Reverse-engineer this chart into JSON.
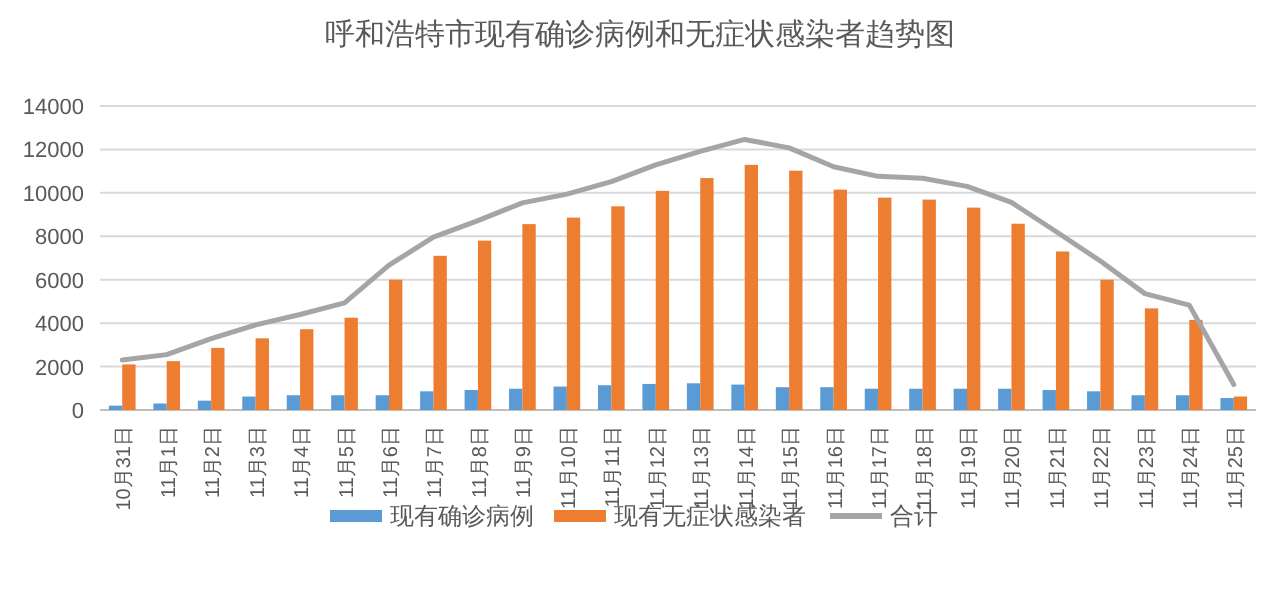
{
  "chart_data": {
    "type": "bar",
    "title": "呼和浩特市现有确诊病例和无症状感染者趋势图",
    "categories": [
      "10月31日",
      "11月1日",
      "11月2日",
      "11月3日",
      "11月4日",
      "11月5日",
      "11月6日",
      "11月7日",
      "11月8日",
      "11月9日",
      "11月10日",
      "11月11日",
      "11月12日",
      "11月13日",
      "11月14日",
      "11月15日",
      "11月16日",
      "11月17日",
      "11月18日",
      "11月19日",
      "11月20日",
      "11月21日",
      "11月22日",
      "11月23日",
      "11月24日",
      "11月25日"
    ],
    "series": [
      {
        "name": "现有确诊病例",
        "color": "#5b9bd5",
        "values": [
          200,
          300,
          430,
          620,
          680,
          680,
          680,
          860,
          920,
          980,
          1080,
          1140,
          1200,
          1230,
          1170,
          1050,
          1050,
          980,
          980,
          980,
          980,
          920,
          860,
          680,
          680,
          550
        ]
      },
      {
        "name": "现有无症状感染者",
        "color": "#ed7d31",
        "values": [
          2100,
          2250,
          2860,
          3300,
          3720,
          4250,
          6000,
          7100,
          7800,
          8560,
          8860,
          9380,
          10090,
          10680,
          11290,
          11020,
          10150,
          9780,
          9690,
          9320,
          8580,
          7300,
          6000,
          4680,
          4150,
          620
        ]
      },
      {
        "name": "合计",
        "type": "line",
        "color": "#a5a5a5",
        "values": [
          2300,
          2550,
          3290,
          3920,
          4400,
          4930,
          6670,
          7960,
          8720,
          9540,
          9940,
          10520,
          11290,
          11910,
          12460,
          12070,
          11200,
          10760,
          10670,
          10300,
          9560,
          8220,
          6860,
          5360,
          4830,
          1170
        ]
      }
    ],
    "ylim": [
      0,
      14000
    ],
    "yticks": [
      0,
      2000,
      4000,
      6000,
      8000,
      10000,
      12000,
      14000
    ],
    "grid": "y",
    "legend": "bottom"
  }
}
